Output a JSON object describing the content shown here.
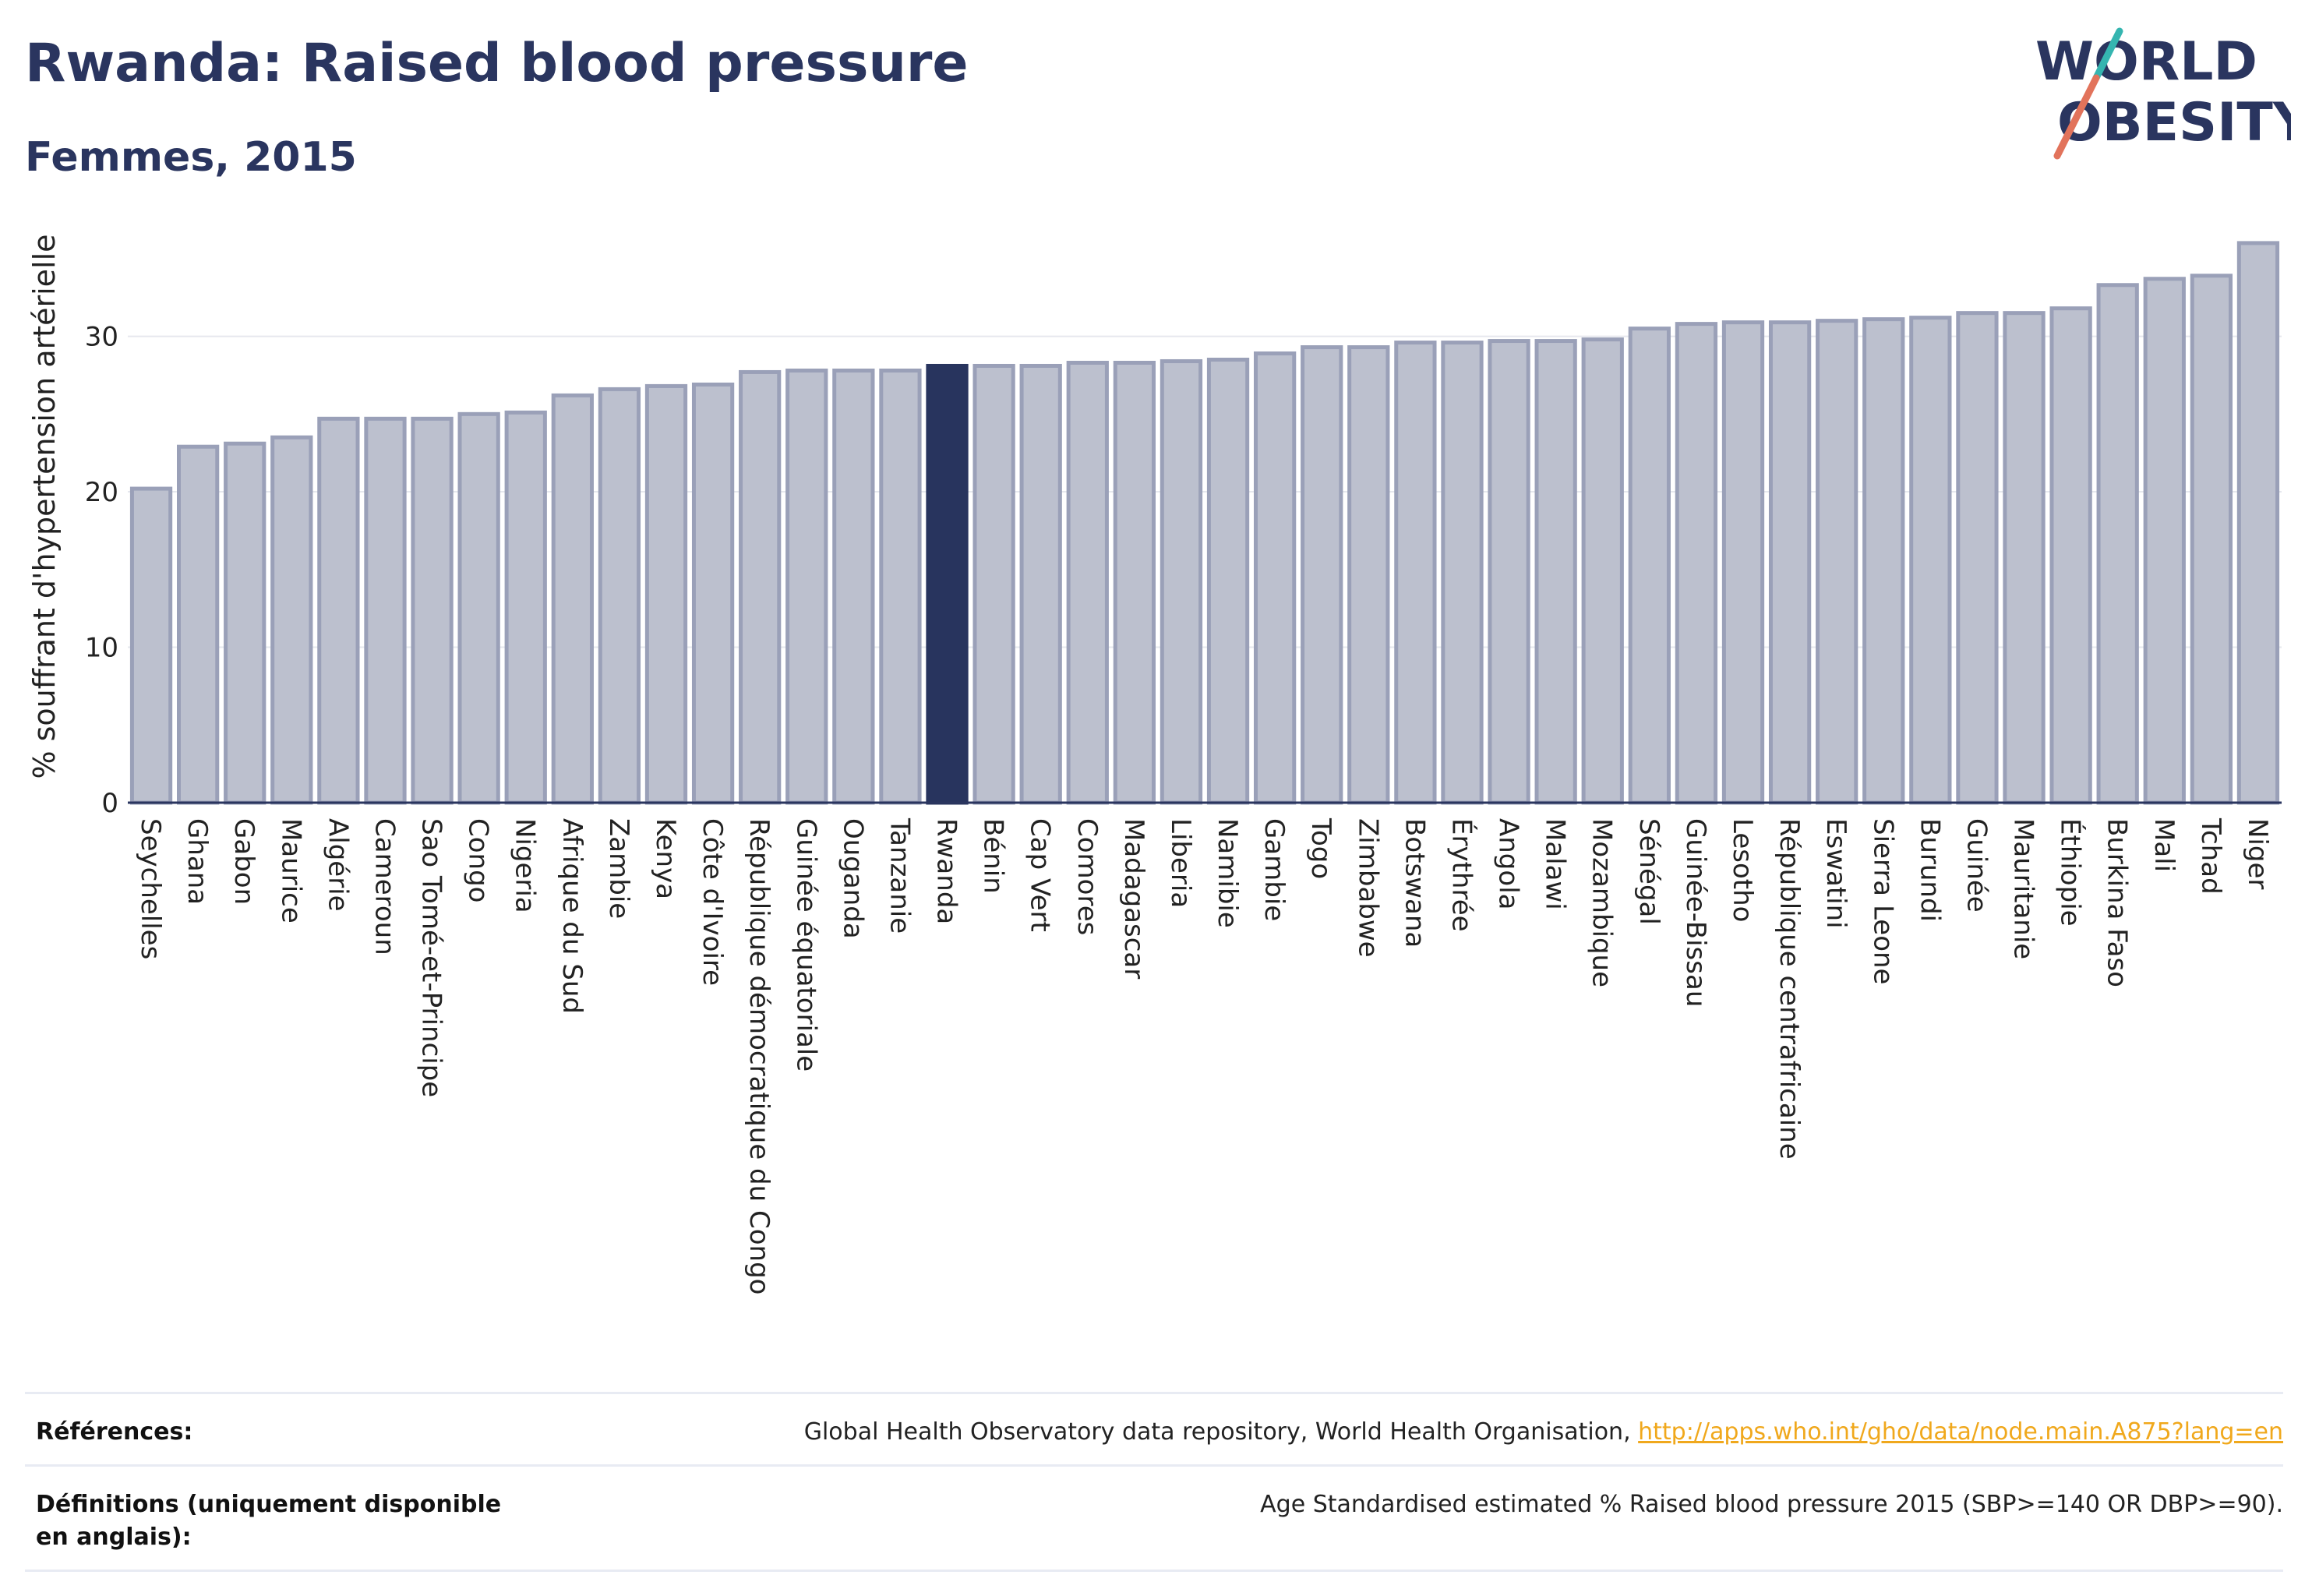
{
  "header": {
    "title": "Rwanda: Raised blood pressure",
    "subtitle": "Femmes, 2015"
  },
  "logo": {
    "line1": "WORLD",
    "line2": "OBESITY"
  },
  "chart_data": {
    "type": "bar",
    "ylabel": "% souffrant d'hypertension artérielle",
    "xlabel": "",
    "ylim": [
      0,
      38
    ],
    "yticks": [
      0,
      10,
      20,
      30
    ],
    "grid": true,
    "highlight": "Rwanda",
    "colors": {
      "bar": "#bcc0ce",
      "bar_edge": "#9aa0b8",
      "highlight": "#28345e",
      "grid": "#e6e8ee",
      "axis": "#2a355f"
    },
    "categories": [
      "Seychelles",
      "Ghana",
      "Gabon",
      "Maurice",
      "Algérie",
      "Cameroun",
      "Sao Tomé-et-Principe",
      "Congo",
      "Nigeria",
      "Afrique du Sud",
      "Zambie",
      "Kenya",
      "Côte d'Ivoire",
      "République démocratique du Congo",
      "Guinée équatoriale",
      "Ouganda",
      "Tanzanie",
      "Rwanda",
      "Bénin",
      "Cap Vert",
      "Comores",
      "Madagascar",
      "Liberia",
      "Namibie",
      "Gambie",
      "Togo",
      "Zimbabwe",
      "Botswana",
      "Érythrée",
      "Angola",
      "Malawi",
      "Mozambique",
      "Sénégal",
      "Guinée-Bissau",
      "Lesotho",
      "République centrafricaine",
      "Eswatini",
      "Sierra Leone",
      "Burundi",
      "Guinée",
      "Mauritanie",
      "Éthiopie",
      "Burkina Faso",
      "Mali",
      "Tchad",
      "Niger"
    ],
    "values": [
      20.2,
      22.9,
      23.1,
      23.5,
      24.7,
      24.7,
      24.7,
      25.0,
      25.1,
      26.2,
      26.6,
      26.8,
      26.9,
      27.7,
      27.8,
      27.8,
      27.8,
      28.1,
      28.1,
      28.1,
      28.3,
      28.3,
      28.4,
      28.5,
      28.9,
      29.3,
      29.3,
      29.6,
      29.6,
      29.7,
      29.7,
      29.8,
      30.5,
      30.8,
      30.9,
      30.9,
      31.0,
      31.1,
      31.2,
      31.5,
      31.5,
      31.8,
      33.3,
      33.7,
      33.9,
      36.0
    ]
  },
  "footer": {
    "references_label": "Références:",
    "references_text": "Global Health Observatory data repository, World Health Organisation, ",
    "references_link": "http://apps.who.int/gho/data/node.main.A875?lang=en",
    "definitions_label": "Définitions (uniquement disponible en anglais):",
    "definitions_text": "Age Standardised estimated % Raised blood pressure 2015 (SBP>=140 OR DBP>=90)."
  }
}
